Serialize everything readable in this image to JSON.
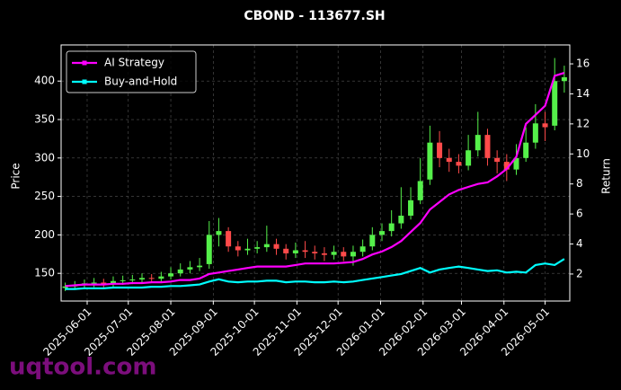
{
  "chart_data": {
    "type": "candlestick",
    "title": "CBOND - 113677.SH",
    "ylabel": "Price",
    "y2label": "Return",
    "watermark": "uqtool.com",
    "x": [
      "2025-05-16",
      "2025-05-23",
      "2025-05-30",
      "2025-06-06",
      "2025-06-13",
      "2025-06-20",
      "2025-06-27",
      "2025-07-04",
      "2025-07-11",
      "2025-07-18",
      "2025-07-25",
      "2025-08-01",
      "2025-08-08",
      "2025-08-15",
      "2025-08-22",
      "2025-08-29",
      "2025-09-05",
      "2025-09-12",
      "2025-09-19",
      "2025-09-26",
      "2025-10-03",
      "2025-10-10",
      "2025-10-17",
      "2025-10-24",
      "2025-10-31",
      "2025-11-07",
      "2025-11-14",
      "2025-11-21",
      "2025-11-28",
      "2025-12-05",
      "2025-12-12",
      "2025-12-19",
      "2025-12-26",
      "2026-01-02",
      "2026-01-09",
      "2026-01-16",
      "2026-01-23",
      "2026-01-30",
      "2026-02-06",
      "2026-02-13",
      "2026-02-20",
      "2026-02-27",
      "2026-03-06",
      "2026-03-13",
      "2026-03-20",
      "2026-03-27",
      "2026-04-03",
      "2026-04-10",
      "2026-04-17",
      "2026-04-24",
      "2026-05-01",
      "2026-05-08",
      "2026-05-15"
    ],
    "open": [
      131,
      133,
      135,
      137,
      138,
      136,
      140,
      141,
      142,
      144,
      143,
      146,
      150,
      155,
      158,
      162,
      200,
      205,
      185,
      180,
      182,
      184,
      188,
      182,
      176,
      180,
      178,
      176,
      174,
      178,
      172,
      178,
      185,
      200,
      205,
      215,
      225,
      245,
      272,
      320,
      300,
      295,
      290,
      310,
      330,
      300,
      295,
      285,
      300,
      320,
      345,
      342,
      400
    ],
    "high": [
      138,
      140,
      142,
      144,
      143,
      146,
      147,
      148,
      150,
      149,
      152,
      158,
      163,
      166,
      170,
      218,
      222,
      210,
      192,
      195,
      192,
      212,
      195,
      188,
      190,
      192,
      186,
      184,
      186,
      184,
      186,
      194,
      210,
      215,
      232,
      262,
      262,
      300,
      342,
      335,
      312,
      305,
      330,
      360,
      338,
      310,
      305,
      318,
      340,
      370,
      360,
      430,
      420
    ],
    "low": [
      127,
      129,
      131,
      132,
      131,
      132,
      135,
      136,
      137,
      138,
      139,
      142,
      146,
      150,
      153,
      156,
      185,
      178,
      172,
      174,
      176,
      178,
      174,
      168,
      170,
      170,
      168,
      166,
      168,
      166,
      160,
      172,
      180,
      192,
      198,
      208,
      220,
      240,
      265,
      288,
      282,
      280,
      284,
      302,
      290,
      280,
      270,
      278,
      295,
      312,
      322,
      336,
      385
    ],
    "close": [
      133,
      135,
      137,
      138,
      136,
      140,
      141,
      142,
      144,
      143,
      146,
      150,
      155,
      158,
      160,
      200,
      205,
      185,
      180,
      182,
      184,
      188,
      182,
      176,
      180,
      178,
      176,
      174,
      178,
      172,
      178,
      185,
      200,
      205,
      215,
      225,
      245,
      270,
      320,
      300,
      295,
      290,
      310,
      330,
      300,
      295,
      285,
      300,
      320,
      345,
      340,
      400,
      405
    ],
    "up_color": "#55f04a",
    "down_color": "#ff4a4a",
    "series": [
      {
        "name": "AI Strategy",
        "color": "#ff00ff",
        "axis": "y2",
        "values": [
          1.2,
          1.25,
          1.3,
          1.3,
          1.3,
          1.35,
          1.35,
          1.4,
          1.4,
          1.45,
          1.45,
          1.5,
          1.6,
          1.6,
          1.7,
          2.0,
          2.1,
          2.2,
          2.3,
          2.4,
          2.5,
          2.5,
          2.5,
          2.5,
          2.6,
          2.7,
          2.7,
          2.7,
          2.7,
          2.75,
          2.8,
          3.0,
          3.3,
          3.5,
          3.8,
          4.2,
          4.8,
          5.4,
          6.3,
          6.8,
          7.3,
          7.6,
          7.8,
          8.0,
          8.1,
          8.5,
          9.0,
          9.8,
          12.0,
          12.6,
          13.2,
          15.2,
          15.4
        ]
      },
      {
        "name": "Buy-and-Hold",
        "color": "#00ffff",
        "axis": "y2",
        "values": [
          1.0,
          1.0,
          1.05,
          1.05,
          1.05,
          1.1,
          1.1,
          1.1,
          1.1,
          1.15,
          1.15,
          1.2,
          1.2,
          1.25,
          1.3,
          1.5,
          1.65,
          1.5,
          1.45,
          1.5,
          1.5,
          1.55,
          1.55,
          1.45,
          1.5,
          1.5,
          1.45,
          1.45,
          1.5,
          1.45,
          1.5,
          1.6,
          1.7,
          1.8,
          1.9,
          2.0,
          2.2,
          2.4,
          2.1,
          2.3,
          2.4,
          2.5,
          2.4,
          2.3,
          2.2,
          2.25,
          2.1,
          2.15,
          2.1,
          2.6,
          2.7,
          2.6,
          3.0
        ]
      }
    ],
    "xlim": [
      "2025-05-13",
      "2026-05-19"
    ],
    "xticks": [
      "2025-06-01",
      "2025-07-01",
      "2025-08-01",
      "2025-09-01",
      "2025-10-01",
      "2025-11-01",
      "2025-12-01",
      "2026-01-01",
      "2026-02-01",
      "2026-03-01",
      "2026-04-01",
      "2026-05-01"
    ],
    "ylim": [
      114,
      447
    ],
    "yticks": [
      150,
      200,
      250,
      300,
      350,
      400
    ],
    "y2lim": [
      0.2,
      17.26
    ],
    "y2ticks": [
      2,
      4,
      6,
      8,
      10,
      12,
      14,
      16
    ],
    "grid": true,
    "legend": "upper left"
  }
}
